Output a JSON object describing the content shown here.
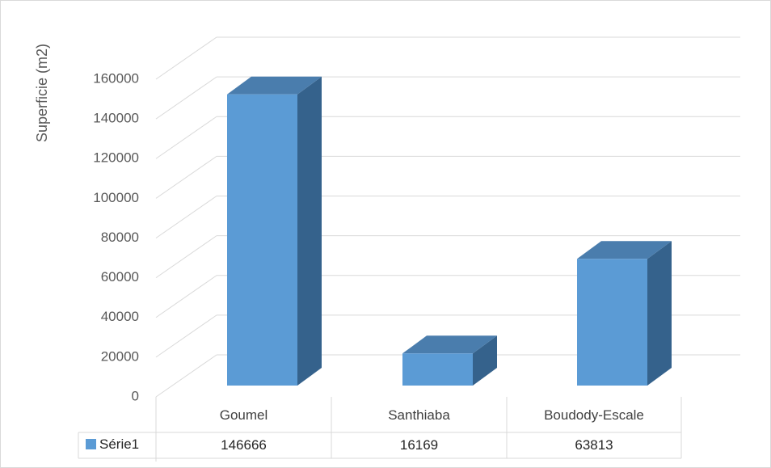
{
  "chart_data": {
    "type": "bar",
    "three_d": true,
    "categories": [
      "Goumel",
      "Santhiaba",
      "Boudody-Escale"
    ],
    "series": [
      {
        "name": "Série1",
        "values": [
          146666,
          16169,
          63813
        ],
        "color": "#5B9BD5"
      }
    ],
    "ylabel": "Superficie (m2)",
    "xlabel": "",
    "ylim": [
      0,
      160000
    ],
    "yticks": [
      0,
      20000,
      40000,
      60000,
      80000,
      100000,
      120000,
      140000,
      160000
    ],
    "grid": true,
    "data_table": true
  },
  "colors": {
    "bar_front": "#5B9BD5",
    "bar_side": "#35628C",
    "bar_top": "#4A7DAD",
    "grid": "#d9d9d9"
  }
}
